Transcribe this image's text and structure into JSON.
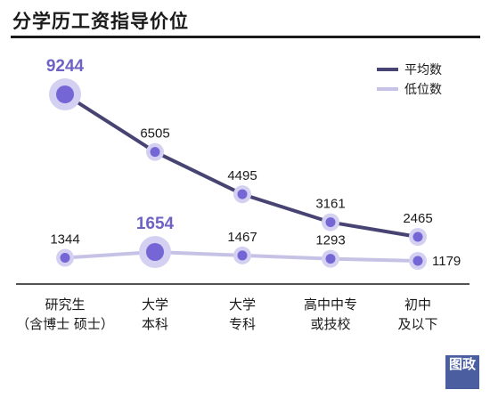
{
  "title": "分学历工资指导价位",
  "watermark": "图政",
  "colors": {
    "avg": "#474474",
    "low": "#c6c2e6",
    "dot": "#7566d6",
    "halo": "#d4d0f2"
  },
  "chart_data": {
    "type": "line",
    "title": "分学历工资指导价位",
    "categories": [
      "研究生（含博士 硕士）",
      "大学本科",
      "大学专科",
      "高中中专或技校",
      "初中及以下"
    ],
    "category_lines": [
      [
        "研究生",
        "（含博士  硕士）"
      ],
      [
        "大学",
        "本科"
      ],
      [
        "大学",
        "专科"
      ],
      [
        "高中中专",
        "或技校"
      ],
      [
        "初中",
        "及以下"
      ]
    ],
    "series": [
      {
        "name": "平均数",
        "values": [
          9244,
          6505,
          4495,
          3161,
          2465
        ]
      },
      {
        "name": "低位数",
        "values": [
          1344,
          1654,
          1467,
          1293,
          1179
        ]
      }
    ],
    "highlighted": [
      {
        "series": 0,
        "index": 0
      },
      {
        "series": 1,
        "index": 1
      }
    ],
    "legend": "top-right",
    "grid": false,
    "ylim": [
      0,
      9244
    ]
  }
}
